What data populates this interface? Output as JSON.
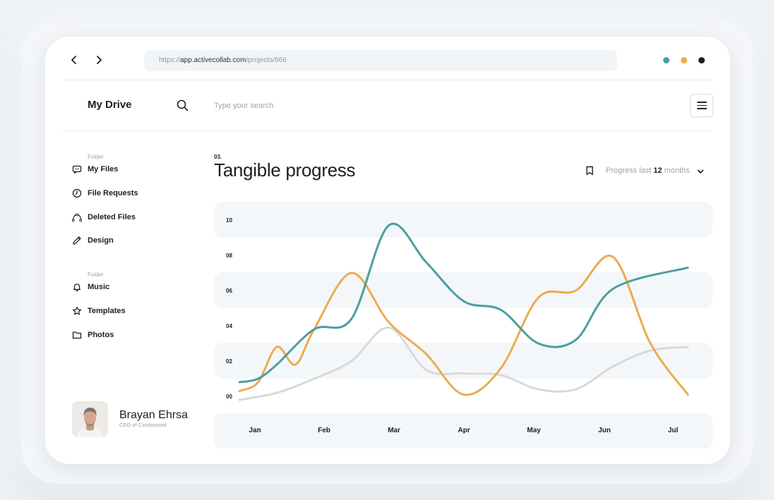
{
  "browser": {
    "url_scheme": "https://",
    "url_host": "app.activecollab.com",
    "url_path": "/projects/666",
    "window_dots": [
      "#4a9fa2",
      "#eeaa4f",
      "#1b1d20"
    ]
  },
  "header": {
    "title": "My Drive",
    "search_placeholder": "Type your search"
  },
  "sidebar": {
    "group1_label": "Folder",
    "group1": [
      {
        "label": "My Files",
        "icon": "chat-icon"
      },
      {
        "label": "File Requests",
        "icon": "clock-icon"
      },
      {
        "label": "Deleted Files",
        "icon": "bezier-icon"
      },
      {
        "label": "Design",
        "icon": "pencil-icon"
      }
    ],
    "group2_label": "Folder",
    "group2": [
      {
        "label": "Music",
        "icon": "bell-icon"
      },
      {
        "label": "Templates",
        "icon": "star-icon"
      },
      {
        "label": "Photos",
        "icon": "folder-icon"
      }
    ]
  },
  "user": {
    "name": "Brayan Ehrsa",
    "role": "CEO of Coixbassed"
  },
  "section": {
    "number": "03.",
    "title": "Tangible progress",
    "period_prefix": "Progress last",
    "period_value": "12",
    "period_suffix": "months"
  },
  "chart_data": {
    "type": "line",
    "categories": [
      "Jan",
      "Feb",
      "Mar",
      "Apr",
      "May",
      "Jun",
      "Jul"
    ],
    "y_ticks": [
      "10",
      "08",
      "06",
      "04",
      "02",
      "00"
    ],
    "ylim": [
      0,
      10
    ],
    "grid": "alternating horizontal bands",
    "series": [
      {
        "color": "#4a9fa2",
        "x": [
          0.0,
          0.25,
          0.5,
          1.0,
          1.5,
          2.0,
          2.5,
          3.0,
          3.5,
          4.0,
          4.5,
          5.0,
          6.0
        ],
        "values": [
          0.8,
          1.0,
          1.8,
          3.8,
          4.4,
          9.7,
          7.6,
          5.4,
          4.9,
          3.0,
          3.2,
          6.1,
          7.3
        ]
      },
      {
        "color": "#eeaa4f",
        "x": [
          0.0,
          0.25,
          0.5,
          0.75,
          1.0,
          1.5,
          2.0,
          2.5,
          3.0,
          3.5,
          4.0,
          4.5,
          5.0,
          5.5,
          6.0
        ],
        "values": [
          0.3,
          0.8,
          2.8,
          1.8,
          3.8,
          7.0,
          4.2,
          2.4,
          0.1,
          1.6,
          5.6,
          6.0,
          7.9,
          3.0,
          0.1
        ]
      },
      {
        "color": "#d9d9d9",
        "x": [
          0.0,
          0.5,
          1.0,
          1.5,
          2.0,
          2.5,
          3.0,
          3.5,
          4.0,
          4.5,
          5.0,
          5.5,
          6.0
        ],
        "values": [
          -0.2,
          0.2,
          1.0,
          2.0,
          3.9,
          1.5,
          1.3,
          1.2,
          0.4,
          0.4,
          1.7,
          2.6,
          2.8
        ]
      }
    ]
  }
}
